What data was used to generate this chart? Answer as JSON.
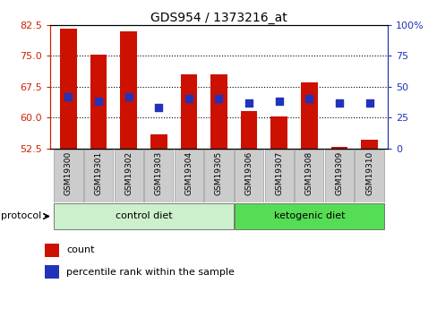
{
  "title": "GDS954 / 1373216_at",
  "samples": [
    "GSM19300",
    "GSM19301",
    "GSM19302",
    "GSM19303",
    "GSM19304",
    "GSM19305",
    "GSM19306",
    "GSM19307",
    "GSM19308",
    "GSM19309",
    "GSM19310"
  ],
  "red_values": [
    81.5,
    75.2,
    80.8,
    55.8,
    70.5,
    70.5,
    61.5,
    60.2,
    68.5,
    52.8,
    54.5
  ],
  "blue_values": [
    65.0,
    64.0,
    65.0,
    62.5,
    64.5,
    64.5,
    63.5,
    64.0,
    64.5,
    63.5,
    63.5
  ],
  "ylim_left": [
    52.5,
    82.5
  ],
  "ylim_right": [
    0,
    100
  ],
  "yticks_left": [
    52.5,
    60.0,
    67.5,
    75.0,
    82.5
  ],
  "yticks_right": [
    0,
    25,
    50,
    75,
    100
  ],
  "ytick_labels_right": [
    "0",
    "25",
    "50",
    "75",
    "100%"
  ],
  "n_control": 6,
  "n_keto": 5,
  "bar_color": "#cc1100",
  "dot_color": "#2233bb",
  "left_axis_color": "#cc2200",
  "right_axis_color": "#2233bb",
  "control_bg": "#ccf0cc",
  "ketogenic_bg": "#55dd55",
  "sample_bg": "#cccccc",
  "grid_color": "#000000",
  "bar_bottom": 52.5,
  "bar_width": 0.55,
  "dot_size": 40,
  "gridlines": [
    60.0,
    67.5,
    75.0
  ]
}
